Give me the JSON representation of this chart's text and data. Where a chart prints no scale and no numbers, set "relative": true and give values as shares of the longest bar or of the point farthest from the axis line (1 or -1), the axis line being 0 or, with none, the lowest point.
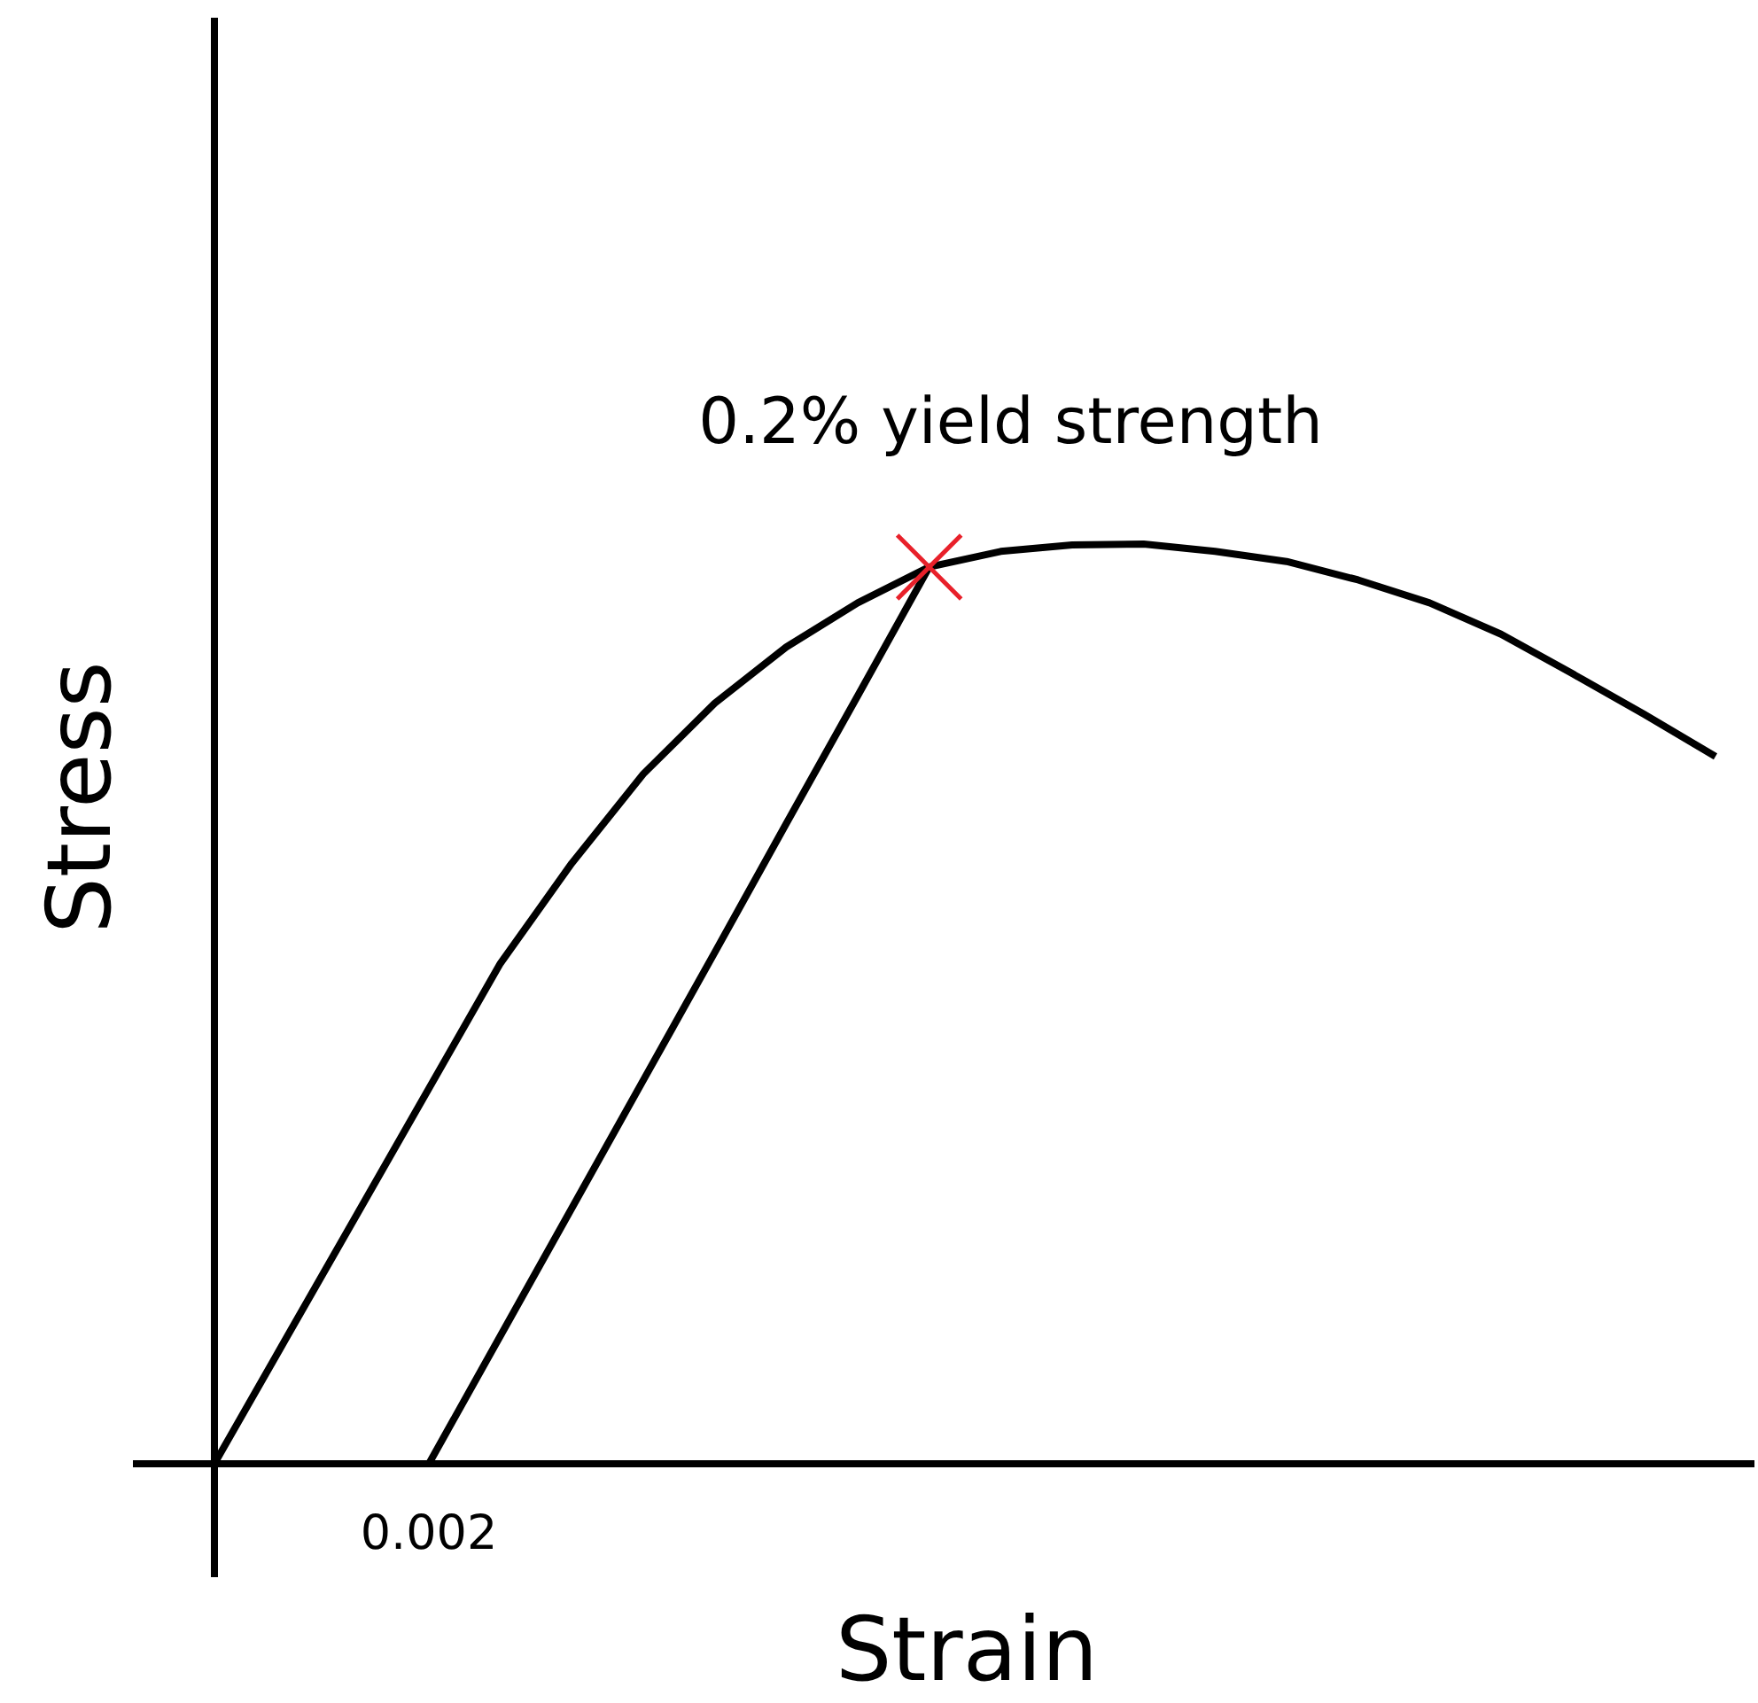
{
  "chart_data": {
    "type": "line",
    "relative": true,
    "xlabel": "Strain",
    "ylabel": "Stress",
    "categories": [
      null,
      null,
      null,
      null,
      null,
      null,
      null,
      null,
      null,
      null,
      null,
      null,
      null,
      null,
      null,
      null,
      null,
      null,
      null,
      null,
      null,
      null
    ],
    "series": [
      {
        "color": "#000000",
        "values": [
          0,
          0.136,
          0.272,
          0.408,
          0.544,
          0.653,
          0.75,
          0.827,
          0.888,
          0.936,
          0.975,
          0.992,
          0.999,
          1,
          0.992,
          0.981,
          0.961,
          0.936,
          0.902,
          0.859,
          0.815,
          0.769
        ]
      },
      {
        "color": "#000000",
        "values": [
          null,
          null,
          null,
          0,
          0.139,
          0.278,
          0.417,
          0.556,
          0.696,
          0.835,
          0.975,
          null,
          null,
          null,
          null,
          null,
          null,
          null,
          null,
          null,
          null,
          null
        ]
      }
    ],
    "annotations": [
      "0.2% yield strength",
      "0.002"
    ]
  }
}
